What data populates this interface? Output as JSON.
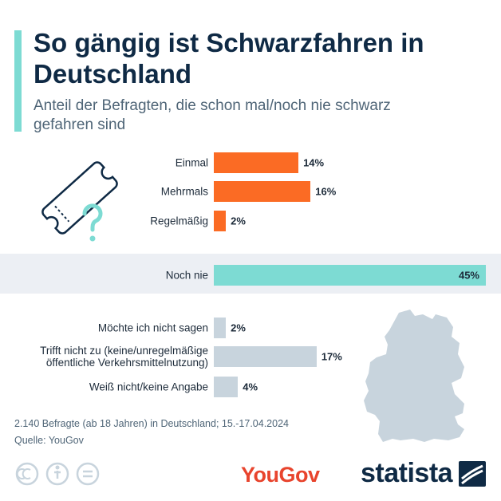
{
  "chart_data": {
    "type": "bar",
    "orientation": "horizontal",
    "title": "So gängig ist Schwarzfahren in Deutschland",
    "subtitle": "Anteil der Befragten, die schon mal/noch nie schwarz gefahren sind",
    "categories": [
      "Einmal",
      "Mehrmals",
      "Regelmäßig",
      "Noch nie",
      "Möchte ich nicht sagen",
      "Trifft nicht zu (keine/unregelmäßige öffentliche Verkehrsmittelnutzung)",
      "Weiß nicht/keine Angabe"
    ],
    "values": [
      14,
      16,
      2,
      45,
      2,
      17,
      4
    ],
    "value_labels": [
      "14%",
      "16%",
      "2%",
      "45%",
      "2%",
      "17%",
      "4%"
    ],
    "colors": [
      "#fb6b24",
      "#fb6b24",
      "#fb6b24",
      "#7ddbd3",
      "#c8d4dd",
      "#c8d4dd",
      "#c8d4dd"
    ],
    "note": "2.140 Befragte (ab 18 Jahren) in Deutschland; 15.-17.04.2024",
    "source": "Quelle: YouGov"
  },
  "logos": [
    "YouGov",
    "statista"
  ]
}
